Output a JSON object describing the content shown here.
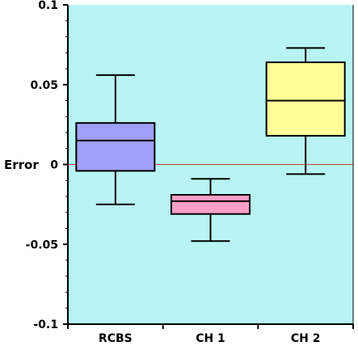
{
  "chart_data": {
    "type": "box",
    "title": "",
    "xlabel": "",
    "ylabel": "Error",
    "ylim": [
      -0.1,
      0.1
    ],
    "yticks": [
      -0.1,
      -0.05,
      0,
      0.05,
      0.1
    ],
    "ytick_labels": [
      "-0.1",
      "-0.05",
      "0",
      "0.05",
      "0.1"
    ],
    "categories": [
      "RCBS",
      "CH 1",
      "CH 2"
    ],
    "boxes": [
      {
        "category": "RCBS",
        "whisker_low": -0.025,
        "q1": -0.004,
        "median": 0.015,
        "q3": 0.026,
        "whisker_high": 0.056,
        "color": "#a0a0f8"
      },
      {
        "category": "CH 1",
        "whisker_low": -0.048,
        "q1": -0.031,
        "median": -0.023,
        "q3": -0.019,
        "whisker_high": -0.009,
        "color": "#f8a0c8"
      },
      {
        "category": "CH 2",
        "whisker_low": -0.006,
        "q1": 0.018,
        "median": 0.04,
        "q3": 0.064,
        "whisker_high": 0.073,
        "color": "#ffff99"
      }
    ],
    "reference_line": {
      "y": 0,
      "color": "#d04040"
    },
    "background_color": "#b8f4f4",
    "grid": false,
    "legend": "none"
  }
}
